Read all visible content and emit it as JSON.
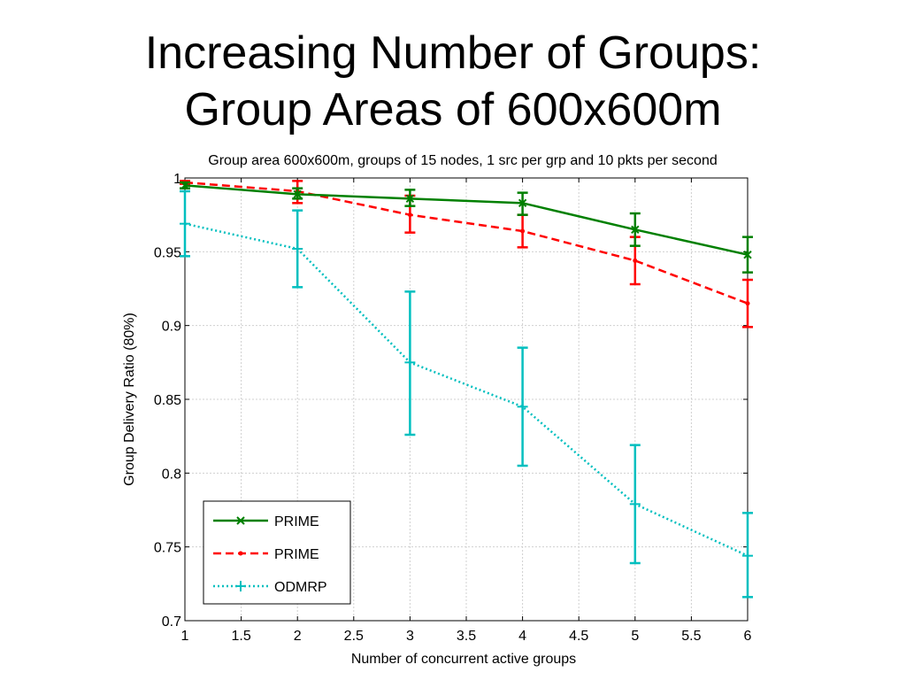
{
  "slide": {
    "title_line1": "Increasing Number of Groups:",
    "title_line2": "Group Areas of 600x600m"
  },
  "chart_data": {
    "type": "line",
    "title": "Group area 600x600m, groups of 15 nodes, 1 src per grp and 10 pkts per second",
    "xlabel": "Number of concurrent active groups",
    "ylabel": "Group Delivery Ratio (80%)",
    "xlim": [
      1,
      6
    ],
    "ylim": [
      0.7,
      1
    ],
    "xticks": [
      "1",
      "1.5",
      "2",
      "2.5",
      "3",
      "3.5",
      "4",
      "4.5",
      "5",
      "5.5",
      "6"
    ],
    "yticks": [
      "0.7",
      "0.75",
      "0.8",
      "0.85",
      "0.9",
      "0.95",
      "1"
    ],
    "grid": true,
    "legend_position": "bottom-left",
    "x": [
      1,
      2,
      3,
      4,
      5,
      6
    ],
    "series": [
      {
        "name": "PRIME",
        "color": "#008000",
        "line_style": "solid",
        "marker": "x",
        "values": [
          0.995,
          0.989,
          0.986,
          0.983,
          0.965,
          0.948
        ],
        "error_low": [
          0.993,
          0.986,
          0.981,
          0.975,
          0.954,
          0.936
        ],
        "error_high": [
          0.997,
          0.993,
          0.992,
          0.99,
          0.976,
          0.96
        ]
      },
      {
        "name": "PRIME",
        "color": "#ff0000",
        "line_style": "dashed",
        "marker": "dot",
        "values": [
          0.997,
          0.991,
          0.975,
          0.964,
          0.944,
          0.915
        ],
        "error_low": [
          0.996,
          0.983,
          0.963,
          0.953,
          0.928,
          0.899
        ],
        "error_high": [
          0.998,
          0.998,
          0.988,
          0.975,
          0.96,
          0.931
        ]
      },
      {
        "name": "ODMRP",
        "color": "#00bfbf",
        "line_style": "dotted",
        "marker": "+",
        "values": [
          0.969,
          0.952,
          0.875,
          0.845,
          0.779,
          0.744
        ],
        "error_low": [
          0.947,
          0.926,
          0.826,
          0.805,
          0.739,
          0.716
        ],
        "error_high": [
          0.991,
          0.978,
          0.923,
          0.885,
          0.819,
          0.773
        ]
      }
    ]
  }
}
